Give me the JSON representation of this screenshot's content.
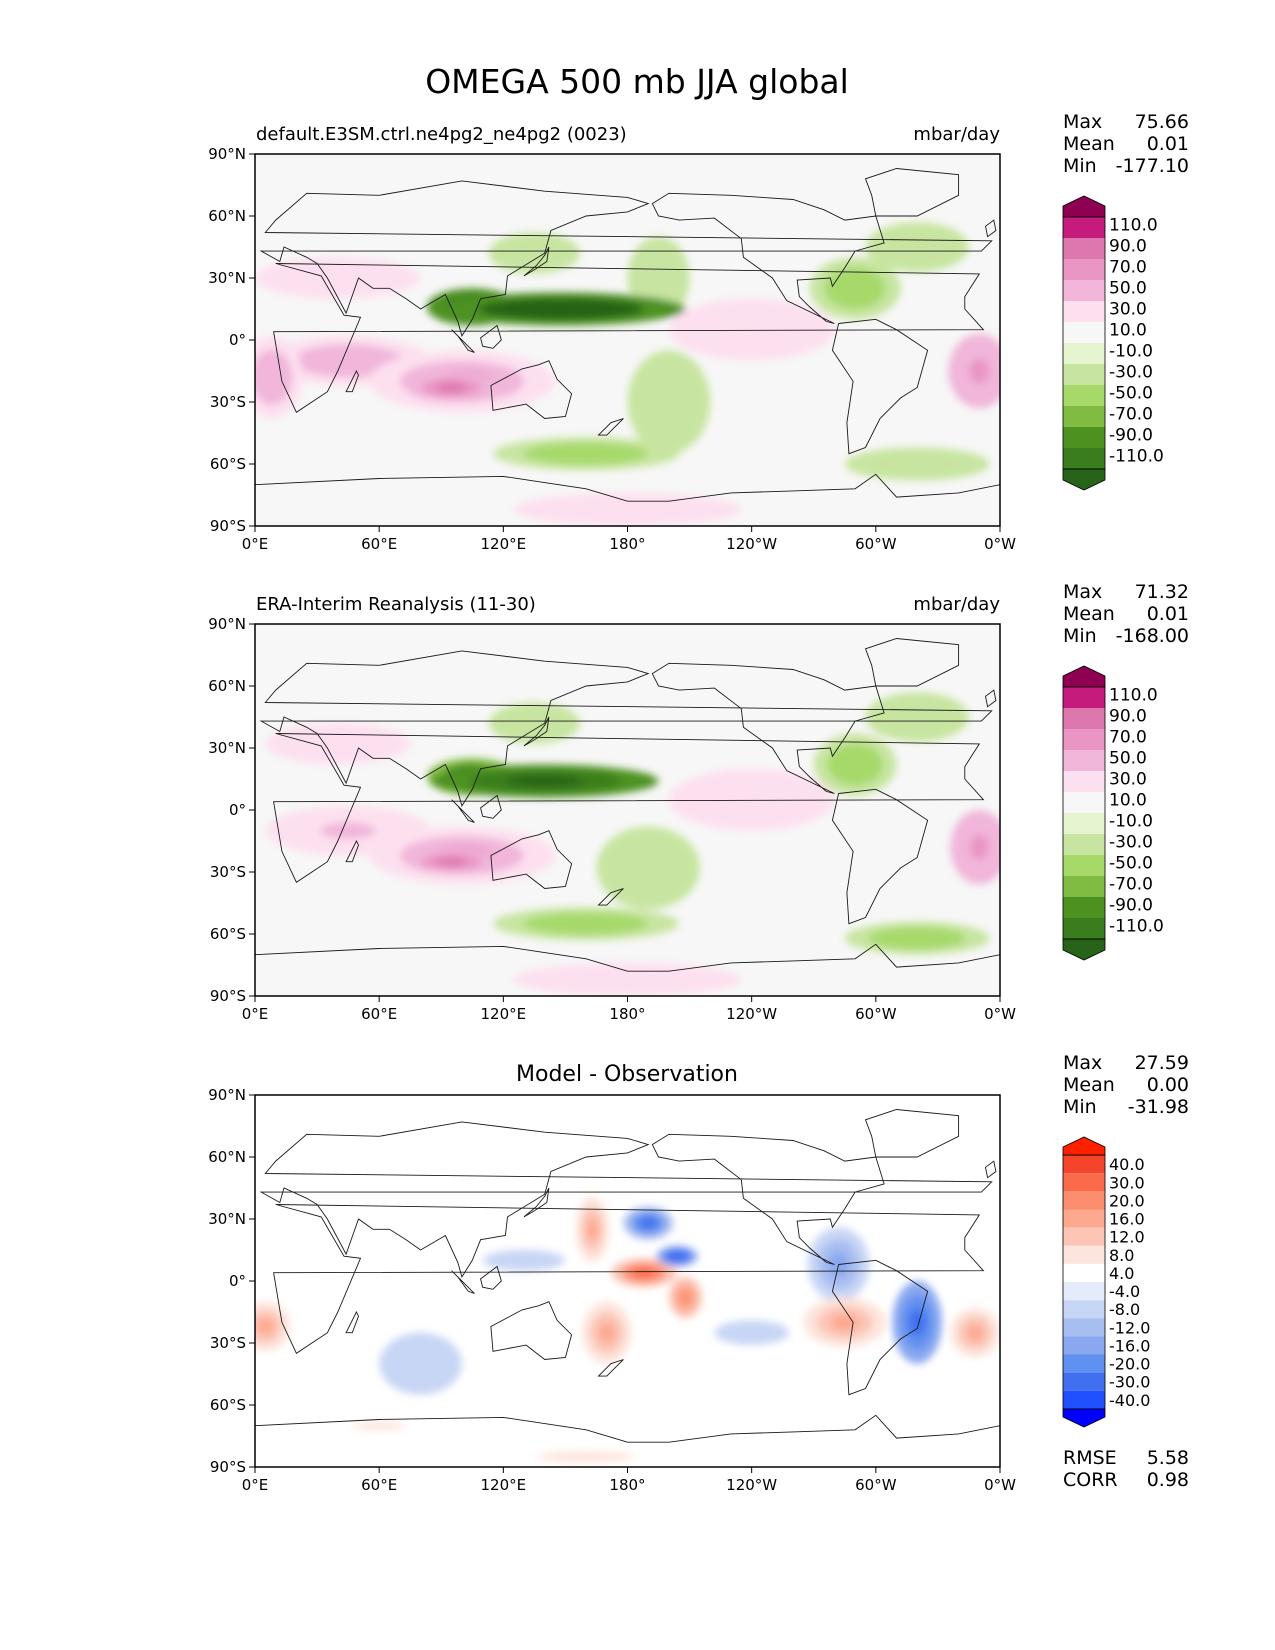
{
  "title": "OMEGA 500 mb JJA global",
  "x_ticks": [
    "0°E",
    "60°E",
    "120°E",
    "180°",
    "120°W",
    "60°W",
    "0°W"
  ],
  "y_ticks": [
    "90°N",
    "60°N",
    "30°N",
    "0°",
    "30°S",
    "60°S",
    "90°S"
  ],
  "colors": {
    "field_scale": [
      "#276419",
      "#3a7d1e",
      "#4d9221",
      "#7fbc41",
      "#a6d96a",
      "#c7e5a0",
      "#e6f5d0",
      "#f7f7f7",
      "#fde0ef",
      "#f1b6da",
      "#e996c5",
      "#de77ae",
      "#c51b7d",
      "#8e0152"
    ],
    "diff_scale": [
      "#0000ff",
      "#2050ff",
      "#4070f0",
      "#6090f0",
      "#8aa8f0",
      "#a8bdf0",
      "#c8d6f5",
      "#e4ebfa",
      "#ffffff",
      "#fde4dc",
      "#fcc5b5",
      "#fca98f",
      "#fc8d6e",
      "#fb6a4a",
      "#f5442c",
      "#ff2000"
    ]
  },
  "chart_data": [
    {
      "type": "heatmap",
      "subtitle": "default.E3SM.ctrl.ne4pg2_ne4pg2 (0023)",
      "units": "mbar/day",
      "stats": [
        [
          "Max",
          "75.66"
        ],
        [
          "Mean",
          "0.01"
        ],
        [
          "Min",
          "-177.10"
        ]
      ],
      "levels": [
        "110.0",
        "90.0",
        "70.0",
        "50.0",
        "30.0",
        "10.0",
        "-10.0",
        "-30.0",
        "-50.0",
        "-70.0",
        "-90.0",
        "-110.0"
      ],
      "xlim": [
        0,
        360
      ],
      "ylim": [
        -90,
        90
      ],
      "features": [
        {
          "lon": 148,
          "lat": 15,
          "rx": 60,
          "ry": 8,
          "value": -150
        },
        {
          "lon": 105,
          "lat": 16,
          "rx": 22,
          "ry": 9,
          "value": -140
        },
        {
          "lon": 135,
          "lat": 42,
          "rx": 22,
          "ry": 10,
          "value": -30
        },
        {
          "lon": 195,
          "lat": 30,
          "rx": 15,
          "ry": 20,
          "value": -30
        },
        {
          "lon": 290,
          "lat": 25,
          "rx": 22,
          "ry": 15,
          "value": -40
        },
        {
          "lon": 320,
          "lat": 45,
          "rx": 25,
          "ry": 12,
          "value": -30
        },
        {
          "lon": 160,
          "lat": -55,
          "rx": 45,
          "ry": 8,
          "value": -40
        },
        {
          "lon": 320,
          "lat": -60,
          "rx": 35,
          "ry": 8,
          "value": -30
        },
        {
          "lon": 200,
          "lat": -30,
          "rx": 20,
          "ry": 25,
          "value": -20
        },
        {
          "lon": 100,
          "lat": -20,
          "rx": 45,
          "ry": 15,
          "value": 50
        },
        {
          "lon": 95,
          "lat": -23,
          "rx": 22,
          "ry": 7,
          "value": 80
        },
        {
          "lon": 45,
          "lat": -10,
          "rx": 40,
          "ry": 12,
          "value": 40
        },
        {
          "lon": 8,
          "lat": -18,
          "rx": 15,
          "ry": 20,
          "value": 40
        },
        {
          "lon": 350,
          "lat": -15,
          "rx": 15,
          "ry": 18,
          "value": 60
        },
        {
          "lon": 40,
          "lat": 30,
          "rx": 40,
          "ry": 10,
          "value": 25
        },
        {
          "lon": 240,
          "lat": 5,
          "rx": 40,
          "ry": 15,
          "value": 20
        },
        {
          "lon": 180,
          "lat": -82,
          "rx": 55,
          "ry": 8,
          "value": 25
        }
      ]
    },
    {
      "type": "heatmap",
      "subtitle": "ERA-Interim Reanalysis (11-30)",
      "units": "mbar/day",
      "stats": [
        [
          "Max",
          "71.32"
        ],
        [
          "Mean",
          "0.01"
        ],
        [
          "Min",
          "-168.00"
        ]
      ],
      "levels": [
        "110.0",
        "90.0",
        "70.0",
        "50.0",
        "30.0",
        "10.0",
        "-10.0",
        "-30.0",
        "-50.0",
        "-70.0",
        "-90.0",
        "-110.0"
      ],
      "xlim": [
        0,
        360
      ],
      "ylim": [
        -90,
        90
      ],
      "features": [
        {
          "lon": 140,
          "lat": 14,
          "rx": 55,
          "ry": 8,
          "value": -140
        },
        {
          "lon": 105,
          "lat": 16,
          "rx": 22,
          "ry": 9,
          "value": -130
        },
        {
          "lon": 135,
          "lat": 42,
          "rx": 22,
          "ry": 10,
          "value": -30
        },
        {
          "lon": 290,
          "lat": 22,
          "rx": 20,
          "ry": 15,
          "value": -40
        },
        {
          "lon": 320,
          "lat": 45,
          "rx": 25,
          "ry": 12,
          "value": -30
        },
        {
          "lon": 160,
          "lat": -55,
          "rx": 45,
          "ry": 8,
          "value": -40
        },
        {
          "lon": 320,
          "lat": -62,
          "rx": 35,
          "ry": 8,
          "value": -40
        },
        {
          "lon": 190,
          "lat": -28,
          "rx": 25,
          "ry": 20,
          "value": -20
        },
        {
          "lon": 100,
          "lat": -22,
          "rx": 45,
          "ry": 14,
          "value": 50
        },
        {
          "lon": 95,
          "lat": -25,
          "rx": 22,
          "ry": 6,
          "value": 75
        },
        {
          "lon": 45,
          "lat": -10,
          "rx": 40,
          "ry": 12,
          "value": 35
        },
        {
          "lon": 350,
          "lat": -18,
          "rx": 14,
          "ry": 18,
          "value": 60
        },
        {
          "lon": 40,
          "lat": 32,
          "rx": 35,
          "ry": 10,
          "value": 25
        },
        {
          "lon": 240,
          "lat": 5,
          "rx": 40,
          "ry": 15,
          "value": 20
        },
        {
          "lon": 180,
          "lat": -82,
          "rx": 55,
          "ry": 8,
          "value": 25
        }
      ]
    },
    {
      "type": "heatmap",
      "subtitle": "Model - Observation",
      "units": "",
      "stats": [
        [
          "Max",
          "27.59"
        ],
        [
          "Mean",
          "0.00"
        ],
        [
          "Min",
          "-31.98"
        ]
      ],
      "levels": [
        "40.0",
        "30.0",
        "20.0",
        "16.0",
        "12.0",
        "8.0",
        "4.0",
        "-4.0",
        "-8.0",
        "-12.0",
        "-16.0",
        "-20.0",
        "-30.0",
        "-40.0"
      ],
      "extra_stats": [
        [
          "RMSE",
          "5.58"
        ],
        [
          "CORR",
          "0.98"
        ]
      ],
      "xlim": [
        0,
        360
      ],
      "ylim": [
        -90,
        90
      ],
      "features": [
        {
          "lon": 190,
          "lat": 28,
          "rx": 12,
          "ry": 8,
          "value": -22
        },
        {
          "lon": 204,
          "lat": 12,
          "rx": 10,
          "ry": 5,
          "value": -28
        },
        {
          "lon": 188,
          "lat": 4,
          "rx": 16,
          "ry": 7,
          "value": 22
        },
        {
          "lon": 208,
          "lat": -8,
          "rx": 8,
          "ry": 10,
          "value": 18
        },
        {
          "lon": 282,
          "lat": 8,
          "rx": 15,
          "ry": 18,
          "value": -14
        },
        {
          "lon": 320,
          "lat": -20,
          "rx": 12,
          "ry": 20,
          "value": -24
        },
        {
          "lon": 285,
          "lat": -20,
          "rx": 20,
          "ry": 12,
          "value": 14
        },
        {
          "lon": 348,
          "lat": -25,
          "rx": 12,
          "ry": 12,
          "value": 14
        },
        {
          "lon": 5,
          "lat": -22,
          "rx": 12,
          "ry": 12,
          "value": 12
        },
        {
          "lon": 163,
          "lat": 25,
          "rx": 8,
          "ry": 16,
          "value": 12
        },
        {
          "lon": 170,
          "lat": -25,
          "rx": 12,
          "ry": 15,
          "value": 12
        },
        {
          "lon": 80,
          "lat": -40,
          "rx": 20,
          "ry": 15,
          "value": -8
        },
        {
          "lon": 240,
          "lat": -25,
          "rx": 18,
          "ry": 6,
          "value": -8
        },
        {
          "lon": 130,
          "lat": 10,
          "rx": 30,
          "ry": 8,
          "value": -6
        },
        {
          "lon": 160,
          "lat": -85,
          "rx": 70,
          "ry": 8,
          "value": 5
        },
        {
          "lon": 60,
          "lat": -70,
          "rx": 40,
          "ry": 6,
          "value": 5
        }
      ]
    }
  ]
}
